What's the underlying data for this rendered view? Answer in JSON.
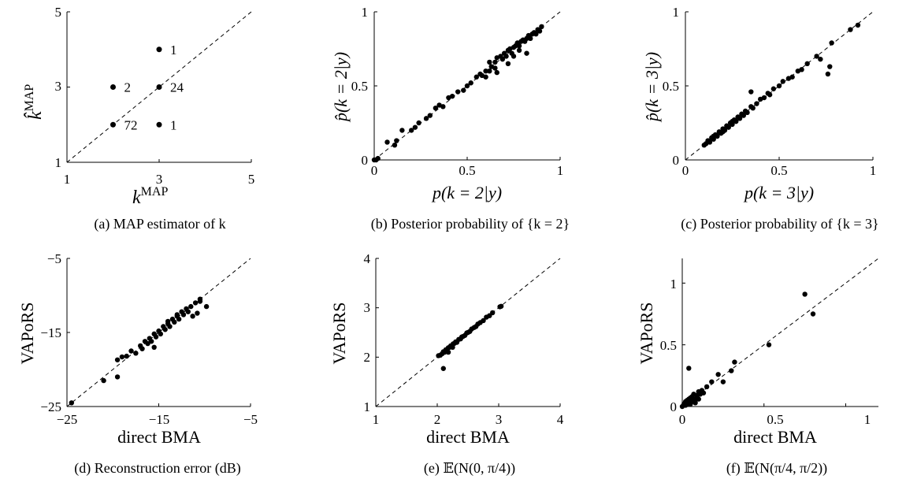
{
  "figure": {
    "panels": [
      {
        "id": "a",
        "caption": "(a) MAP estimator of k",
        "x_label_main": "k",
        "x_label_sup": "MAP",
        "y_label_main": "k̂",
        "y_label_sup": "MAP",
        "x_ticks": [
          "1",
          "3",
          "5"
        ],
        "y_ticks": [
          "1",
          "3",
          "5"
        ]
      },
      {
        "id": "b",
        "caption": "(b) Posterior probability of {k = 2}",
        "x_label": "p(k = 2|y)",
        "y_label": "p̂(k = 2|y)",
        "x_ticks": [
          "0",
          "0.5",
          "1"
        ],
        "y_ticks": [
          "0",
          "0.5",
          "1"
        ]
      },
      {
        "id": "c",
        "caption": "(c) Posterior probability of {k = 3}",
        "x_label": "p(k = 3|y)",
        "y_label": "p̂(k = 3|y)",
        "x_ticks": [
          "0",
          "0.5",
          "1"
        ],
        "y_ticks": [
          "0",
          "0.5",
          "1"
        ]
      },
      {
        "id": "d",
        "caption": "(d) Reconstruction error (dB)",
        "x_label": "direct BMA",
        "y_label": "VAPoRS",
        "x_ticks": [
          "−25",
          "−15",
          "−5"
        ],
        "y_ticks": [
          "−25",
          "−15",
          "−5"
        ]
      },
      {
        "id": "e",
        "caption": "(e) 𝔼(N(0, π/4))",
        "x_label": "direct BMA",
        "y_label": "VAPoRS",
        "x_ticks": [
          "1",
          "2",
          "3",
          "4"
        ],
        "y_ticks": [
          "1",
          "2",
          "3",
          "4"
        ]
      },
      {
        "id": "f",
        "caption": "(f) 𝔼(N(π/4, π/2))",
        "x_label": "direct BMA",
        "y_label": "VAPoRS",
        "x_ticks": [
          "0",
          "0.5",
          "1"
        ],
        "y_ticks": [
          "0",
          "0.5",
          "1"
        ]
      }
    ]
  },
  "chart_data": [
    {
      "panel": "a",
      "type": "scatter",
      "xlabel": "k^MAP",
      "ylabel": "k̂^MAP",
      "xlim": [
        1,
        5
      ],
      "ylim": [
        1,
        5
      ],
      "x_ticks": [
        1,
        3,
        5
      ],
      "y_ticks": [
        1,
        3,
        5
      ],
      "reference_line": "y = x",
      "points": [
        {
          "x": 2,
          "y": 2,
          "count": "72"
        },
        {
          "x": 2,
          "y": 3,
          "count": "2"
        },
        {
          "x": 3,
          "y": 3,
          "count": "24"
        },
        {
          "x": 3,
          "y": 4,
          "count": "1"
        },
        {
          "x": 3,
          "y": 2,
          "count": "1"
        }
      ]
    },
    {
      "panel": "b",
      "type": "scatter",
      "xlabel": "p(k = 2|y)",
      "ylabel": "p̂(k = 2|y)",
      "xlim": [
        0,
        1
      ],
      "ylim": [
        0,
        1
      ],
      "x_ticks": [
        0,
        0.5,
        1
      ],
      "y_ticks": [
        0,
        0.5,
        1
      ],
      "reference_line": "y = x",
      "x": [
        0.0,
        0.01,
        0.02,
        0.07,
        0.11,
        0.12,
        0.15,
        0.2,
        0.22,
        0.24,
        0.28,
        0.3,
        0.33,
        0.35,
        0.37,
        0.4,
        0.42,
        0.45,
        0.48,
        0.5,
        0.52,
        0.55,
        0.57,
        0.58,
        0.6,
        0.6,
        0.62,
        0.63,
        0.65,
        0.65,
        0.66,
        0.68,
        0.69,
        0.7,
        0.71,
        0.72,
        0.73,
        0.74,
        0.75,
        0.76,
        0.77,
        0.78,
        0.79,
        0.8,
        0.81,
        0.82,
        0.83,
        0.84,
        0.85,
        0.86,
        0.87,
        0.88,
        0.89,
        0.9,
        0.62,
        0.66,
        0.72,
        0.75,
        0.78,
        0.82
      ],
      "y": [
        0.0,
        0.0,
        0.01,
        0.12,
        0.1,
        0.13,
        0.2,
        0.2,
        0.22,
        0.25,
        0.28,
        0.3,
        0.35,
        0.37,
        0.36,
        0.42,
        0.43,
        0.46,
        0.47,
        0.5,
        0.52,
        0.56,
        0.58,
        0.57,
        0.56,
        0.6,
        0.6,
        0.63,
        0.62,
        0.66,
        0.69,
        0.7,
        0.68,
        0.72,
        0.7,
        0.74,
        0.75,
        0.72,
        0.76,
        0.77,
        0.79,
        0.77,
        0.8,
        0.81,
        0.8,
        0.82,
        0.84,
        0.82,
        0.85,
        0.86,
        0.85,
        0.88,
        0.87,
        0.9,
        0.66,
        0.59,
        0.65,
        0.7,
        0.74,
        0.72
      ]
    },
    {
      "panel": "c",
      "type": "scatter",
      "xlabel": "p(k = 3|y)",
      "ylabel": "p̂(k = 3|y)",
      "xlim": [
        0,
        1
      ],
      "ylim": [
        0,
        1
      ],
      "x_ticks": [
        0,
        0.5,
        1
      ],
      "y_ticks": [
        0,
        0.5,
        1
      ],
      "reference_line": "y = x",
      "x": [
        0.1,
        0.11,
        0.12,
        0.13,
        0.14,
        0.15,
        0.16,
        0.17,
        0.18,
        0.19,
        0.2,
        0.21,
        0.22,
        0.23,
        0.24,
        0.25,
        0.26,
        0.27,
        0.28,
        0.29,
        0.3,
        0.31,
        0.32,
        0.33,
        0.35,
        0.36,
        0.38,
        0.4,
        0.42,
        0.44,
        0.45,
        0.47,
        0.5,
        0.52,
        0.55,
        0.57,
        0.6,
        0.62,
        0.65,
        0.7,
        0.72,
        0.76,
        0.77,
        0.78,
        0.88,
        0.92,
        0.35,
        0.15,
        0.2,
        0.25
      ],
      "y": [
        0.1,
        0.11,
        0.13,
        0.12,
        0.15,
        0.14,
        0.17,
        0.16,
        0.19,
        0.18,
        0.21,
        0.2,
        0.23,
        0.22,
        0.25,
        0.24,
        0.27,
        0.26,
        0.29,
        0.28,
        0.31,
        0.3,
        0.33,
        0.32,
        0.36,
        0.35,
        0.38,
        0.41,
        0.42,
        0.45,
        0.44,
        0.48,
        0.5,
        0.53,
        0.55,
        0.56,
        0.6,
        0.61,
        0.65,
        0.7,
        0.68,
        0.58,
        0.63,
        0.79,
        0.88,
        0.91,
        0.46,
        0.16,
        0.19,
        0.26
      ]
    },
    {
      "panel": "d",
      "type": "scatter",
      "xlabel": "direct BMA",
      "ylabel": "VAPoRS",
      "xlim": [
        -25,
        -5
      ],
      "ylim": [
        -25,
        -5
      ],
      "x_ticks": [
        -25,
        -15,
        -5
      ],
      "y_ticks": [
        -25,
        -15,
        -5
      ],
      "reference_line": "y = x",
      "x": [
        -24.5,
        -21,
        -19.5,
        -19.5,
        -19,
        -18.5,
        -18,
        -17.5,
        -17,
        -16.8,
        -16.5,
        -16.2,
        -16,
        -15.8,
        -15.5,
        -15.3,
        -15,
        -14.8,
        -14.5,
        -14.3,
        -14,
        -13.8,
        -13.5,
        -13.3,
        -13,
        -12.8,
        -12.5,
        -12.3,
        -12,
        -11.8,
        -11.5,
        -11.3,
        -11,
        -10.8,
        -10.5,
        -10.5,
        -9.8,
        -15.5,
        -14,
        -13
      ],
      "y": [
        -24.5,
        -21.5,
        -18.7,
        -21,
        -18.3,
        -18.2,
        -17.5,
        -17.8,
        -16.8,
        -17.2,
        -16.2,
        -16.5,
        -15.8,
        -16.2,
        -15.2,
        -15.6,
        -14.8,
        -15.2,
        -14.2,
        -14.6,
        -13.8,
        -14.2,
        -13.2,
        -13.6,
        -12.8,
        -13.2,
        -12.2,
        -12.6,
        -11.8,
        -12.2,
        -11.5,
        -12.8,
        -11,
        -12.4,
        -10.5,
        -10.8,
        -11.5,
        -17,
        -13.5,
        -12.6
      ]
    },
    {
      "panel": "e",
      "type": "scatter",
      "xlabel": "direct BMA",
      "ylabel": "VAPoRS",
      "xlim": [
        1,
        4
      ],
      "ylim": [
        1,
        4
      ],
      "x_ticks": [
        1,
        2,
        3,
        4
      ],
      "y_ticks": [
        1,
        2,
        3,
        4
      ],
      "reference_line": "y = x",
      "x": [
        2.02,
        2.05,
        2.08,
        2.1,
        2.12,
        2.14,
        2.16,
        2.18,
        2.2,
        2.22,
        2.24,
        2.26,
        2.28,
        2.3,
        2.32,
        2.35,
        2.38,
        2.4,
        2.42,
        2.45,
        2.48,
        2.5,
        2.53,
        2.56,
        2.6,
        2.63,
        2.66,
        2.7,
        2.75,
        2.8,
        2.85,
        2.9,
        3.02,
        3.04,
        2.1,
        2.18,
        2.25
      ],
      "y": [
        2.03,
        2.04,
        2.07,
        2.11,
        2.1,
        2.15,
        2.14,
        2.19,
        2.2,
        2.23,
        2.22,
        2.27,
        2.28,
        2.31,
        2.3,
        2.36,
        2.37,
        2.41,
        2.42,
        2.44,
        2.49,
        2.5,
        2.52,
        2.57,
        2.6,
        2.62,
        2.67,
        2.7,
        2.74,
        2.81,
        2.84,
        2.9,
        3.02,
        3.03,
        1.77,
        2.1,
        2.2
      ]
    },
    {
      "panel": "f",
      "type": "scatter",
      "xlabel": "direct BMA",
      "ylabel": "VAPoRS",
      "xlim": [
        0,
        1.2
      ],
      "ylim": [
        0,
        1.2
      ],
      "x_ticks": [
        0,
        0.5,
        1
      ],
      "y_ticks": [
        0,
        0.5,
        1
      ],
      "reference_line": "y = x",
      "x": [
        0.0,
        0.01,
        0.02,
        0.02,
        0.03,
        0.03,
        0.04,
        0.04,
        0.05,
        0.05,
        0.06,
        0.06,
        0.07,
        0.07,
        0.08,
        0.09,
        0.1,
        0.11,
        0.12,
        0.13,
        0.15,
        0.18,
        0.22,
        0.25,
        0.3,
        0.32,
        0.53,
        0.75,
        0.8,
        0.04,
        0.08,
        0.1
      ],
      "y": [
        0.0,
        0.02,
        0.01,
        0.04,
        0.02,
        0.05,
        0.03,
        0.06,
        0.02,
        0.07,
        0.04,
        0.08,
        0.05,
        0.1,
        0.06,
        0.09,
        0.12,
        0.1,
        0.13,
        0.11,
        0.16,
        0.2,
        0.26,
        0.2,
        0.29,
        0.36,
        0.5,
        0.91,
        0.75,
        0.31,
        0.03,
        0.06
      ]
    }
  ]
}
